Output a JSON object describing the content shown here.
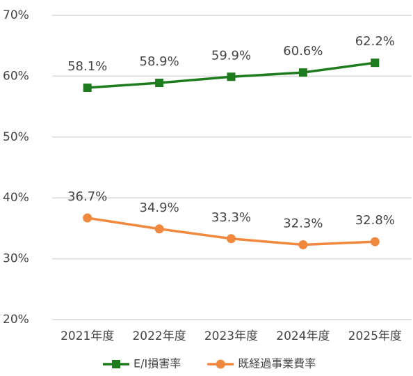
{
  "chart_data": {
    "type": "line",
    "categories": [
      "2021年度",
      "2022年度",
      "2023年度",
      "2024年度",
      "2025年度"
    ],
    "series": [
      {
        "name": "E/I損害率",
        "color": "#1e7b1e",
        "marker": "square",
        "values": [
          58.1,
          58.9,
          59.9,
          60.6,
          62.2
        ],
        "value_labels": [
          "58.1%",
          "58.9%",
          "59.9%",
          "60.6%",
          "62.2%"
        ]
      },
      {
        "name": "既経過事業費率",
        "color": "#f0883e",
        "marker": "circle",
        "values": [
          36.7,
          34.9,
          33.3,
          32.3,
          32.8
        ],
        "value_labels": [
          "36.7%",
          "34.9%",
          "33.3%",
          "32.3%",
          "32.8%"
        ]
      }
    ],
    "ylim": [
      20,
      70
    ],
    "yticks": [
      {
        "value": 20,
        "label": "20%"
      },
      {
        "value": 30,
        "label": "30%"
      },
      {
        "value": 40,
        "label": "40%"
      },
      {
        "value": 50,
        "label": "50%"
      },
      {
        "value": 60,
        "label": "60%"
      },
      {
        "value": 70,
        "label": "70%"
      }
    ],
    "grid": true,
    "legend": "bottom"
  }
}
